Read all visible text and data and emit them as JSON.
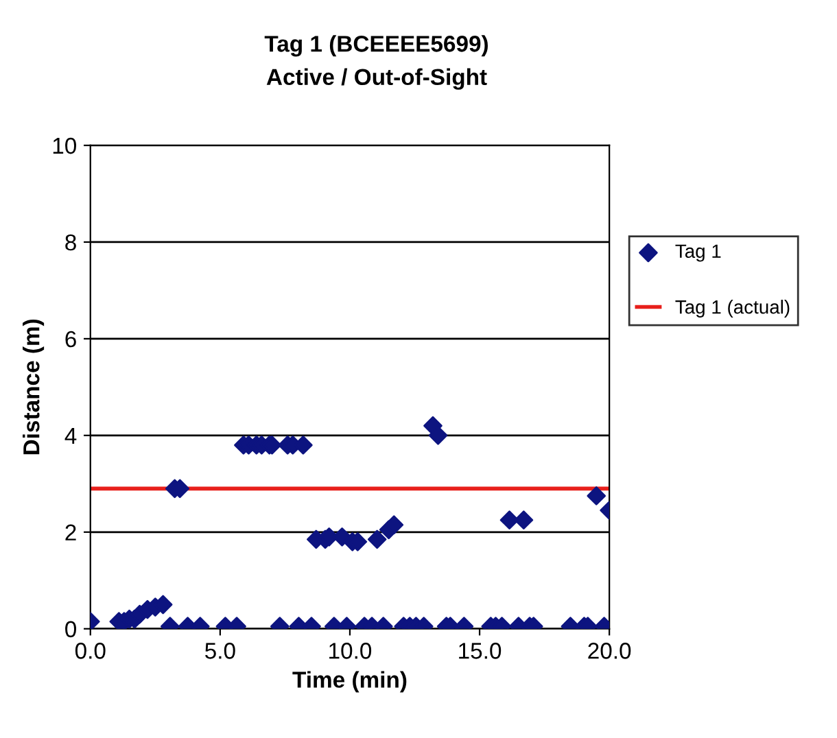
{
  "chart_data": {
    "type": "scatter",
    "title": "Tag 1 (BCEEEE5699)",
    "subtitle": "Active / Out-of-Sight",
    "xlabel": "Time (min)",
    "ylabel": "Distance (m)",
    "xlim": [
      0,
      20
    ],
    "xticks": [
      {
        "value": 0,
        "label": "0.0"
      },
      {
        "value": 5,
        "label": "5.0"
      },
      {
        "value": 10,
        "label": "10.0"
      },
      {
        "value": 15,
        "label": "15.0"
      },
      {
        "value": 20,
        "label": "20.0"
      }
    ],
    "ylim": [
      0,
      10
    ],
    "yticks": [
      0,
      2,
      4,
      6,
      8,
      10
    ],
    "grid": "y",
    "legend": "right",
    "marker": "diamond",
    "series": [
      {
        "name": "Tag 1",
        "color": "#0d1480",
        "x": [
          0.0,
          1.1,
          1.3,
          1.5,
          1.7,
          1.9,
          2.2,
          2.5,
          2.8,
          3.07,
          3.75,
          4.23,
          5.2,
          5.64,
          7.3,
          8.03,
          8.52,
          9.39,
          9.88,
          10.56,
          10.85,
          11.29,
          12.07,
          12.31,
          12.55,
          12.85,
          13.72,
          13.87,
          14.4,
          15.43,
          15.62,
          15.86,
          16.5,
          16.93,
          17.08,
          18.5,
          19.03,
          19.17,
          19.8,
          3.25,
          3.45,
          5.9,
          6.1,
          6.4,
          6.6,
          6.9,
          7.0,
          7.6,
          7.8,
          8.2,
          13.2,
          13.4,
          8.7,
          9.05,
          9.2,
          9.7,
          10.1,
          10.3,
          11.05,
          11.5,
          11.7,
          16.15,
          16.7,
          19.5,
          20.0
        ],
        "values": [
          0.15,
          0.15,
          0.15,
          0.2,
          0.2,
          0.3,
          0.4,
          0.45,
          0.5,
          0.05,
          0.05,
          0.05,
          0.05,
          0.05,
          0.05,
          0.05,
          0.05,
          0.05,
          0.05,
          0.05,
          0.05,
          0.05,
          0.05,
          0.05,
          0.05,
          0.05,
          0.05,
          0.05,
          0.05,
          0.05,
          0.05,
          0.05,
          0.05,
          0.05,
          0.05,
          0.05,
          0.05,
          0.05,
          0.05,
          2.9,
          2.9,
          3.8,
          3.8,
          3.8,
          3.8,
          3.8,
          3.8,
          3.8,
          3.8,
          3.8,
          4.2,
          4.0,
          1.85,
          1.85,
          1.9,
          1.9,
          1.8,
          1.8,
          1.85,
          2.05,
          2.15,
          2.25,
          2.25,
          2.75,
          2.45
        ]
      },
      {
        "name": "Tag 1 (actual)",
        "color": "#e8201c",
        "type": "line",
        "marker": "none",
        "x": [
          0,
          20
        ],
        "values": [
          2.9,
          2.9
        ]
      }
    ]
  }
}
